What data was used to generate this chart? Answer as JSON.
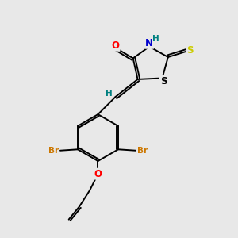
{
  "background_color": "#e8e8e8",
  "bond_color": "#000000",
  "atom_colors": {
    "O": "#ff0000",
    "N": "#0000cc",
    "S_thioxo": "#cccc00",
    "S_ring": "#000000",
    "Br": "#cc7700",
    "H": "#008080",
    "C": "#000000"
  },
  "font_size_atoms": 8.5,
  "font_size_H": 7.5,
  "font_size_Br": 7.5,
  "figsize": [
    3.0,
    3.0
  ],
  "dpi": 100
}
